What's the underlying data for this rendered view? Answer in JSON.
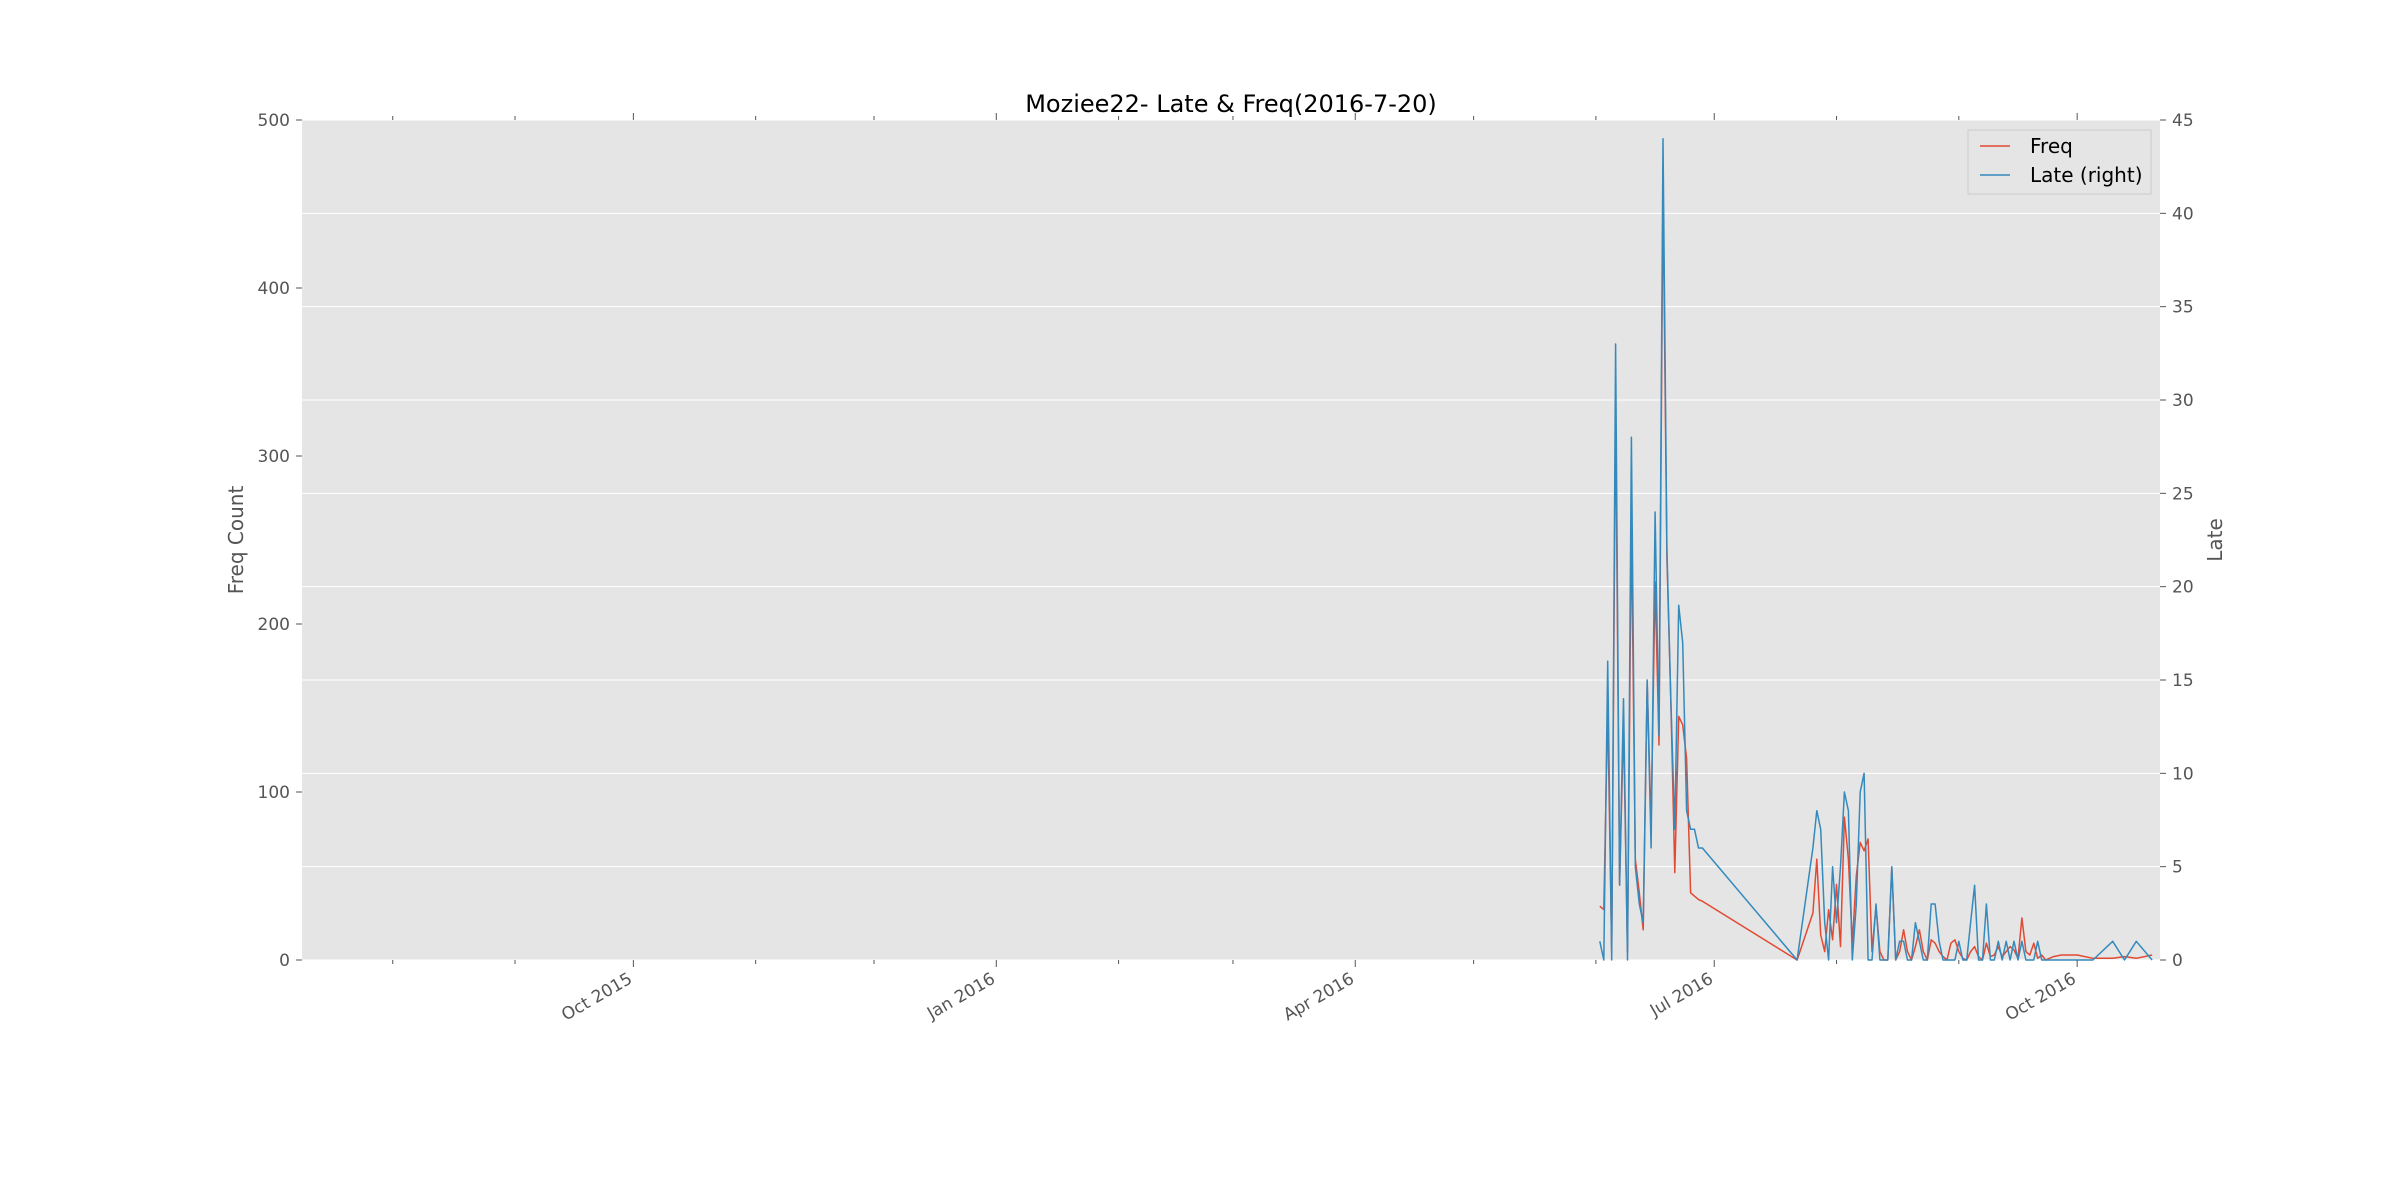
{
  "chart_data": {
    "type": "line",
    "title": "Moziee22- Late & Freq(2016-7-20)",
    "ylabel_left": "Freq Count",
    "ylabel_right": "Late",
    "xlabel": "",
    "x_range": [
      "2015-07-09",
      "2016-10-22"
    ],
    "ylim_left": [
      0,
      500
    ],
    "ylim_right": [
      0,
      45
    ],
    "y_ticks_left": [
      0,
      100,
      200,
      300,
      400,
      500
    ],
    "y_ticks_right": [
      0,
      5,
      10,
      15,
      20,
      25,
      30,
      35,
      40,
      45
    ],
    "x_ticks": [
      {
        "date": "2015-10-01",
        "label": "Oct 2015"
      },
      {
        "date": "2016-01-01",
        "label": "Jan 2016"
      },
      {
        "date": "2016-04-01",
        "label": "Apr 2016"
      },
      {
        "date": "2016-07-01",
        "label": "Jul 2016"
      },
      {
        "date": "2016-10-01",
        "label": "Oct 2016"
      }
    ],
    "x_minor_ticks": [
      "2015-08-01",
      "2015-09-01",
      "2015-11-01",
      "2015-12-01",
      "2016-02-01",
      "2016-03-01",
      "2016-05-01",
      "2016-06-01",
      "2016-08-01",
      "2016-09-01"
    ],
    "grid": true,
    "legend": "top-right",
    "colors": {
      "background": "#e5e5e5",
      "grid": "#ffffff",
      "freq": "#e24a33",
      "late": "#348abd"
    },
    "series": [
      {
        "name": "Freq",
        "axis": "left",
        "color": "#e24a33",
        "x": [
          "2016-06-02",
          "2016-06-03",
          "2016-06-04",
          "2016-06-05",
          "2016-06-06",
          "2016-06-07",
          "2016-06-08",
          "2016-06-09",
          "2016-06-10",
          "2016-06-11",
          "2016-06-12",
          "2016-06-13",
          "2016-06-14",
          "2016-06-15",
          "2016-06-16",
          "2016-06-17",
          "2016-06-18",
          "2016-06-19",
          "2016-06-20",
          "2016-06-21",
          "2016-06-22",
          "2016-06-23",
          "2016-06-24",
          "2016-06-25",
          "2016-06-26",
          "2016-06-27",
          "2016-06-28",
          "2016-07-22",
          "2016-07-26",
          "2016-07-27",
          "2016-07-28",
          "2016-07-29",
          "2016-07-30",
          "2016-07-31",
          "2016-08-01",
          "2016-08-02",
          "2016-08-03",
          "2016-08-04",
          "2016-08-05",
          "2016-08-06",
          "2016-08-07",
          "2016-08-08",
          "2016-08-09",
          "2016-08-10",
          "2016-08-11",
          "2016-08-12",
          "2016-08-13",
          "2016-08-14",
          "2016-08-15",
          "2016-08-16",
          "2016-08-17",
          "2016-08-18",
          "2016-08-19",
          "2016-08-20",
          "2016-08-21",
          "2016-08-22",
          "2016-08-23",
          "2016-08-24",
          "2016-08-25",
          "2016-08-26",
          "2016-08-27",
          "2016-08-28",
          "2016-08-29",
          "2016-08-30",
          "2016-08-31",
          "2016-09-01",
          "2016-09-02",
          "2016-09-03",
          "2016-09-04",
          "2016-09-05",
          "2016-09-06",
          "2016-09-07",
          "2016-09-08",
          "2016-09-09",
          "2016-09-10",
          "2016-09-11",
          "2016-09-12",
          "2016-09-13",
          "2016-09-14",
          "2016-09-15",
          "2016-09-16",
          "2016-09-17",
          "2016-09-18",
          "2016-09-19",
          "2016-09-20",
          "2016-09-21",
          "2016-09-22",
          "2016-09-23",
          "2016-09-24",
          "2016-09-25",
          "2016-09-27",
          "2016-10-01",
          "2016-10-05",
          "2016-10-10",
          "2016-10-13",
          "2016-10-16",
          "2016-10-20"
        ],
        "values": [
          32,
          30,
          150,
          5,
          330,
          45,
          140,
          5,
          260,
          60,
          40,
          18,
          165,
          80,
          225,
          128,
          460,
          240,
          155,
          52,
          145,
          140,
          120,
          40,
          38,
          36,
          35,
          0,
          28,
          60,
          15,
          5,
          30,
          12,
          45,
          8,
          85,
          60,
          10,
          50,
          70,
          65,
          72,
          5,
          32,
          5,
          0,
          0,
          55,
          0,
          5,
          18,
          5,
          0,
          8,
          18,
          5,
          0,
          12,
          10,
          5,
          2,
          0,
          10,
          12,
          5,
          1,
          0,
          5,
          8,
          2,
          0,
          10,
          2,
          3,
          8,
          2,
          5,
          8,
          6,
          1,
          25,
          5,
          3,
          10,
          1,
          3,
          0,
          1,
          2,
          3,
          3,
          1,
          1,
          2,
          1,
          3
        ]
      },
      {
        "name": "Late (right)",
        "axis": "right",
        "color": "#348abd",
        "x": [
          "2016-06-02",
          "2016-06-03",
          "2016-06-04",
          "2016-06-05",
          "2016-06-06",
          "2016-06-07",
          "2016-06-08",
          "2016-06-09",
          "2016-06-10",
          "2016-06-11",
          "2016-06-12",
          "2016-06-13",
          "2016-06-14",
          "2016-06-15",
          "2016-06-16",
          "2016-06-17",
          "2016-06-18",
          "2016-06-19",
          "2016-06-20",
          "2016-06-21",
          "2016-06-22",
          "2016-06-23",
          "2016-06-24",
          "2016-06-25",
          "2016-06-26",
          "2016-06-27",
          "2016-06-28",
          "2016-07-22",
          "2016-07-26",
          "2016-07-27",
          "2016-07-28",
          "2016-07-29",
          "2016-07-30",
          "2016-07-31",
          "2016-08-01",
          "2016-08-02",
          "2016-08-03",
          "2016-08-04",
          "2016-08-05",
          "2016-08-06",
          "2016-08-07",
          "2016-08-08",
          "2016-08-09",
          "2016-08-10",
          "2016-08-11",
          "2016-08-12",
          "2016-08-13",
          "2016-08-14",
          "2016-08-15",
          "2016-08-16",
          "2016-08-17",
          "2016-08-18",
          "2016-08-19",
          "2016-08-20",
          "2016-08-21",
          "2016-08-22",
          "2016-08-23",
          "2016-08-24",
          "2016-08-25",
          "2016-08-26",
          "2016-08-27",
          "2016-08-28",
          "2016-08-29",
          "2016-08-30",
          "2016-08-31",
          "2016-09-01",
          "2016-09-02",
          "2016-09-03",
          "2016-09-04",
          "2016-09-05",
          "2016-09-06",
          "2016-09-07",
          "2016-09-08",
          "2016-09-09",
          "2016-09-10",
          "2016-09-11",
          "2016-09-12",
          "2016-09-13",
          "2016-09-14",
          "2016-09-15",
          "2016-09-16",
          "2016-09-17",
          "2016-09-18",
          "2016-09-19",
          "2016-09-20",
          "2016-09-21",
          "2016-09-22",
          "2016-09-23",
          "2016-09-24",
          "2016-09-25",
          "2016-09-27",
          "2016-10-01",
          "2016-10-05",
          "2016-10-10",
          "2016-10-13",
          "2016-10-16",
          "2016-10-20"
        ],
        "values": [
          1,
          0,
          16,
          0,
          33,
          4,
          14,
          0,
          28,
          5,
          3,
          2,
          15,
          6,
          24,
          12,
          44,
          22,
          14,
          7,
          19,
          17,
          8,
          7,
          7,
          6,
          6,
          0,
          6,
          8,
          7,
          2,
          0,
          5,
          2,
          5,
          9,
          8,
          0,
          3,
          9,
          10,
          0,
          0,
          3,
          0,
          0,
          0,
          5,
          0,
          1,
          1,
          0,
          0,
          2,
          1,
          0,
          0,
          3,
          3,
          1,
          0,
          0,
          0,
          0,
          1,
          0,
          0,
          2,
          4,
          0,
          0,
          3,
          0,
          0,
          1,
          0,
          1,
          0,
          1,
          0,
          1,
          0,
          0,
          0,
          1,
          0,
          0,
          0,
          0,
          0,
          0,
          0,
          1,
          0,
          1,
          0
        ]
      }
    ]
  }
}
